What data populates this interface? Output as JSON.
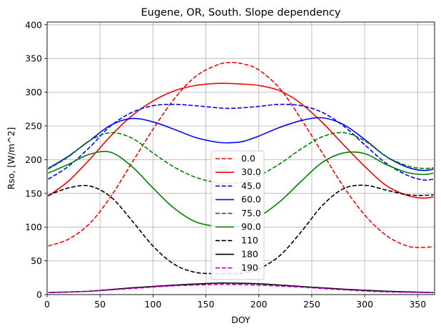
{
  "chart_data": {
    "type": "line",
    "title": "Eugene, OR,  South. Slope dependency",
    "xlabel": "DOY",
    "ylabel": "Rso, [W/m^2]",
    "xlim": [
      0,
      366
    ],
    "ylim": [
      0,
      404
    ],
    "xticks": [
      0,
      50,
      100,
      150,
      200,
      250,
      300,
      350
    ],
    "yticks": [
      0,
      50,
      100,
      150,
      200,
      250,
      300,
      350,
      400
    ],
    "grid": true,
    "legend_position": "bottom-center",
    "series": [
      {
        "name": "0.0",
        "color": "#ff0000",
        "dash": "dashed",
        "x": [
          1,
          20,
          40,
          60,
          80,
          100,
          120,
          140,
          160,
          172,
          185,
          200,
          220,
          240,
          260,
          280,
          300,
          320,
          340,
          355,
          365
        ],
        "y": [
          72,
          82,
          105,
          145,
          195,
          245,
          290,
          323,
          340,
          344,
          342,
          333,
          305,
          260,
          210,
          160,
          118,
          88,
          72,
          70,
          71
        ]
      },
      {
        "name": "30.0",
        "color": "#ff0000",
        "dash": "solid",
        "x": [
          1,
          20,
          40,
          60,
          80,
          100,
          120,
          140,
          160,
          172,
          185,
          200,
          220,
          240,
          260,
          280,
          300,
          320,
          340,
          355,
          365
        ],
        "y": [
          146,
          168,
          200,
          235,
          265,
          287,
          302,
          310,
          313,
          313,
          312,
          310,
          302,
          283,
          255,
          222,
          190,
          162,
          147,
          143,
          145
        ]
      },
      {
        "name": "45.0",
        "color": "#0000ff",
        "dash": "dashed",
        "x": [
          1,
          20,
          40,
          60,
          80,
          100,
          120,
          140,
          160,
          172,
          185,
          200,
          220,
          240,
          260,
          280,
          300,
          320,
          340,
          355,
          365
        ],
        "y": [
          171,
          190,
          218,
          250,
          270,
          280,
          282,
          280,
          277,
          276,
          277,
          279,
          282,
          280,
          270,
          250,
          222,
          195,
          177,
          170,
          171
        ]
      },
      {
        "name": "60.0",
        "color": "#0000ff",
        "dash": "solid",
        "x": [
          1,
          20,
          40,
          60,
          80,
          100,
          120,
          140,
          160,
          172,
          185,
          200,
          220,
          240,
          260,
          280,
          300,
          320,
          340,
          355,
          365
        ],
        "y": [
          187,
          205,
          228,
          251,
          261,
          256,
          245,
          233,
          226,
          225,
          227,
          235,
          248,
          258,
          262,
          252,
          230,
          205,
          189,
          184,
          186
        ]
      },
      {
        "name": "75.0",
        "color": "#008000",
        "dash": "dashed",
        "x": [
          1,
          20,
          40,
          60,
          80,
          100,
          120,
          140,
          160,
          172,
          185,
          200,
          220,
          240,
          260,
          280,
          300,
          320,
          340,
          355,
          365
        ],
        "y": [
          186,
          204,
          228,
          240,
          232,
          210,
          189,
          174,
          166,
          165,
          167,
          176,
          194,
          216,
          234,
          240,
          228,
          205,
          191,
          187,
          188
        ]
      },
      {
        "name": "90.0",
        "color": "#008000",
        "dash": "solid",
        "x": [
          1,
          20,
          40,
          60,
          80,
          100,
          120,
          140,
          160,
          172,
          185,
          200,
          220,
          240,
          260,
          280,
          300,
          320,
          340,
          355,
          365
        ],
        "y": [
          180,
          193,
          208,
          211,
          190,
          158,
          128,
          108,
          101,
          100,
          103,
          115,
          138,
          168,
          196,
          210,
          209,
          193,
          181,
          178,
          180
        ]
      },
      {
        "name": "110",
        "color": "#000000",
        "dash": "dashed",
        "x": [
          1,
          20,
          40,
          60,
          80,
          100,
          120,
          140,
          160,
          172,
          185,
          200,
          220,
          240,
          260,
          280,
          300,
          320,
          340,
          355,
          365
        ],
        "y": [
          147,
          158,
          161,
          145,
          110,
          72,
          45,
          33,
          31,
          31,
          32,
          38,
          58,
          93,
          132,
          157,
          162,
          155,
          148,
          147,
          148
        ]
      },
      {
        "name": "180",
        "color": "#000000",
        "dash": "solid",
        "x": [
          1,
          40,
          80,
          120,
          160,
          172,
          200,
          240,
          280,
          320,
          365
        ],
        "y": [
          3,
          5,
          10,
          14,
          17,
          17,
          16,
          12,
          8,
          5,
          3
        ]
      },
      {
        "name": "190",
        "color": "#c000c0",
        "dash": "dashed",
        "x": [
          1,
          40,
          80,
          120,
          160,
          172,
          200,
          240,
          280,
          320,
          365
        ],
        "y": [
          3,
          5,
          9,
          13,
          15,
          15,
          14,
          11,
          7,
          4,
          3
        ]
      }
    ]
  }
}
